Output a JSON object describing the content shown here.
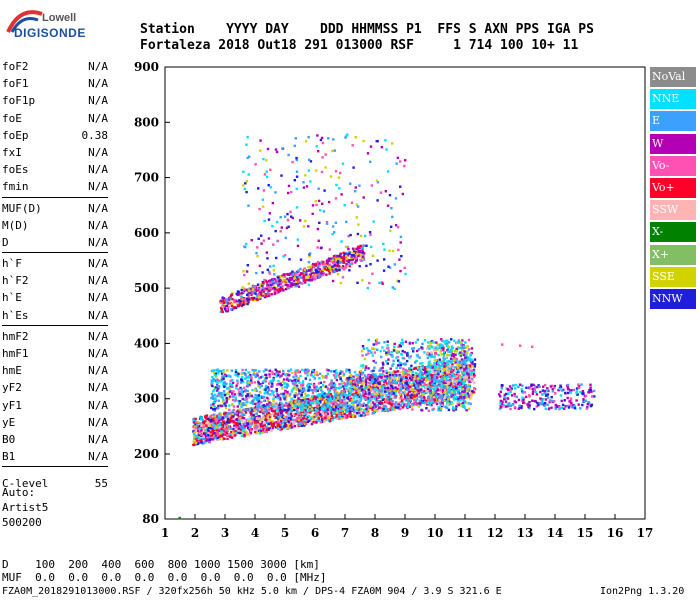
{
  "logo": {
    "line1": "Lowell",
    "line2": "DIGISONDE"
  },
  "header": {
    "labels": "Station    YYYY DAY    DDD HHMMSS P1  FFS S AXN PPS IGA PS",
    "values": "Fortaleza 2018 Out18 291 013000 RSF     1 714 100 10+ 11"
  },
  "params": [
    {
      "name": "foF2",
      "value": "N/A"
    },
    {
      "name": "foF1",
      "value": "N/A"
    },
    {
      "name": "foF1p",
      "value": "N/A"
    },
    {
      "name": "foE",
      "value": "N/A"
    },
    {
      "name": "foEp",
      "value": "0.38"
    },
    {
      "name": "fxI",
      "value": "N/A"
    },
    {
      "name": "foEs",
      "value": "N/A"
    },
    {
      "name": "fmin",
      "value": "N/A"
    },
    {
      "name": "MUF(D)",
      "value": "N/A"
    },
    {
      "name": "M(D)",
      "value": "N/A"
    },
    {
      "name": "D",
      "value": "N/A"
    },
    {
      "name": "h`F",
      "value": "N/A"
    },
    {
      "name": "h`F2",
      "value": "N/A"
    },
    {
      "name": "h`E",
      "value": "N/A"
    },
    {
      "name": "h`Es",
      "value": "N/A"
    },
    {
      "name": "hmF2",
      "value": "N/A"
    },
    {
      "name": "hmF1",
      "value": "N/A"
    },
    {
      "name": "hmE",
      "value": "N/A"
    },
    {
      "name": "yF2",
      "value": "N/A"
    },
    {
      "name": "yF1",
      "value": "N/A"
    },
    {
      "name": "yE",
      "value": "N/A"
    },
    {
      "name": "B0",
      "value": "N/A"
    },
    {
      "name": "B1",
      "value": "N/A"
    },
    {
      "name": "C-level",
      "value": "55"
    }
  ],
  "auto": {
    "line1": "Auto:",
    "line2": "Artist5",
    "line3": "500200"
  },
  "footer": {
    "d_row": "D    100  200  400  600  800 1000 1500 3000 [km]",
    "muf_row": "MUF  0.0  0.0  0.0  0.0  0.0  0.0  0.0  0.0 [MHz]"
  },
  "file_info": "FZA0M_2018291013000.RSF / 320fx256h 50 kHz 5.0 km / DPS-4 FZA0M 904 / 3.9 S 321.6 E",
  "version": "Ion2Png 1.3.20",
  "legend": [
    {
      "label": "NoVal",
      "color": "#8c8c8c"
    },
    {
      "label": "NNE",
      "color": "#00e0ff"
    },
    {
      "label": "E",
      "color": "#3ca0ff"
    },
    {
      "label": "W",
      "color": "#b400b4"
    },
    {
      "label": "Vo-",
      "color": "#ff50b4"
    },
    {
      "label": "Vo+",
      "color": "#ff0028"
    },
    {
      "label": "SSW",
      "color": "#ffb4b4"
    },
    {
      "label": "X-",
      "color": "#008200"
    },
    {
      "label": "X+",
      "color": "#82be64"
    },
    {
      "label": "SSE",
      "color": "#d2d200"
    },
    {
      "label": "NNW",
      "color": "#1e1edc"
    }
  ],
  "chart_data": {
    "type": "scatter",
    "xlabel": "",
    "ylabel": "",
    "xlim": [
      1,
      17
    ],
    "ylim": [
      80,
      900
    ],
    "xticks": [
      1,
      2,
      3,
      4,
      5,
      6,
      7,
      8,
      9,
      10,
      11,
      12,
      13,
      14,
      15,
      16,
      17
    ],
    "yticks": [
      80,
      200,
      300,
      400,
      500,
      600,
      700,
      800,
      900
    ],
    "y_scale": "nonlinear (80 at bottom, 200–900 linear)",
    "grid": false,
    "clusters": [
      {
        "name": "F-layer trace (main)",
        "freq_range": [
          1.9,
          11.3
        ],
        "height_range": [
          210,
          450
        ],
        "dominant": [
          "Vo+",
          "Vo-",
          "SSE",
          "NNE",
          "E"
        ]
      },
      {
        "name": "spread-F upper",
        "freq_range": [
          3.0,
          11.0
        ],
        "height_range": [
          300,
          420
        ],
        "dominant": [
          "NNE",
          "E",
          "W",
          "NNW"
        ]
      },
      {
        "name": "second-hop trace",
        "freq_range": [
          2.5,
          9.0
        ],
        "height_range": [
          450,
          800
        ],
        "dominant": [
          "W",
          "Vo-",
          "SSE"
        ]
      },
      {
        "name": "high-frequency echoes",
        "freq_range": [
          12.0,
          15.3
        ],
        "height_range": [
          280,
          330
        ],
        "dominant": [
          "W",
          "E",
          "NNE",
          "Vo-"
        ]
      },
      {
        "name": "isolated point",
        "freq_range": [
          1.4,
          1.5
        ],
        "height_range": [
          82,
          88
        ],
        "dominant": [
          "X-"
        ]
      }
    ]
  }
}
